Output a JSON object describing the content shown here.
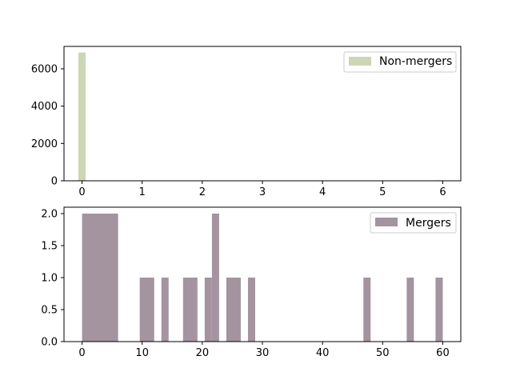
{
  "chart_data": [
    {
      "type": "bar",
      "name": "top-histogram",
      "color": "#cbd6b7",
      "legend": {
        "label": "Non-mergers",
        "placement": "upper-right"
      },
      "xlim": [
        -0.3,
        6.3
      ],
      "ylim": [
        0,
        7200
      ],
      "x_ticks": [
        0,
        1,
        2,
        3,
        4,
        5,
        6
      ],
      "y_ticks": [
        0,
        2000,
        4000,
        6000
      ],
      "bar_width": 0.12,
      "bars": [
        {
          "x": 0.0,
          "value": 6870
        },
        {
          "x": 1.0,
          "value": 20
        },
        {
          "x": 2.0,
          "value": 8
        },
        {
          "x": 4.0,
          "value": 5
        },
        {
          "x": 5.0,
          "value": 4
        },
        {
          "x": 5.94,
          "value": 30
        }
      ],
      "grid": false
    },
    {
      "type": "bar",
      "name": "bottom-histogram",
      "color": "#a3949f",
      "legend": {
        "label": "Mergers",
        "placement": "upper-right"
      },
      "xlim": [
        -3,
        63
      ],
      "ylim": [
        0,
        2.1
      ],
      "x_ticks": [
        0,
        10,
        20,
        30,
        40,
        50,
        60
      ],
      "y_ticks": [
        0.0,
        0.5,
        1.0,
        1.5,
        2.0
      ],
      "y_tick_labels": [
        "0.0",
        "0.5",
        "1.0",
        "1.5",
        "2.0"
      ],
      "bars": [
        {
          "x0": 0.0,
          "x1": 6.0,
          "value": 2
        },
        {
          "x0": 9.6,
          "x1": 12.0,
          "value": 1
        },
        {
          "x0": 13.2,
          "x1": 14.4,
          "value": 1
        },
        {
          "x0": 16.8,
          "x1": 19.2,
          "value": 1
        },
        {
          "x0": 20.4,
          "x1": 21.6,
          "value": 1
        },
        {
          "x0": 21.6,
          "x1": 22.8,
          "value": 2
        },
        {
          "x0": 24.0,
          "x1": 26.4,
          "value": 1
        },
        {
          "x0": 27.6,
          "x1": 28.8,
          "value": 1
        },
        {
          "x0": 46.8,
          "x1": 48.0,
          "value": 1
        },
        {
          "x0": 54.0,
          "x1": 55.2,
          "value": 1
        },
        {
          "x0": 58.8,
          "x1": 60.0,
          "value": 1
        }
      ],
      "grid": false
    }
  ]
}
